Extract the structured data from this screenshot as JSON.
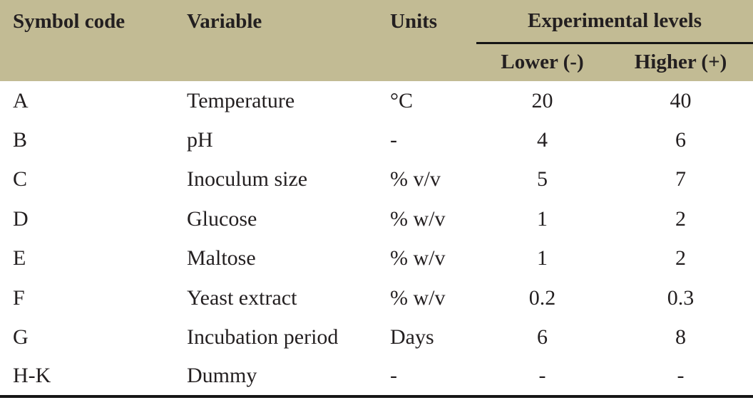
{
  "header": {
    "symbol_code": "Symbol code",
    "variable": "Variable",
    "units": "Units",
    "experimental_levels": "Experimental levels",
    "lower": "Lower (-)",
    "higher": "Higher (+)"
  },
  "rows": [
    {
      "symbol": "A",
      "variable": "Temperature",
      "units": "°C",
      "lower": "20",
      "higher": "40"
    },
    {
      "symbol": "B",
      "variable": "pH",
      "units": "-",
      "lower": "4",
      "higher": "6"
    },
    {
      "symbol": "C",
      "variable": "Inoculum size",
      "units": "% v/v",
      "lower": "5",
      "higher": "7"
    },
    {
      "symbol": "D",
      "variable": "Glucose",
      "units": "% w/v",
      "lower": "1",
      "higher": "2"
    },
    {
      "symbol": "E",
      "variable": "Maltose",
      "units": "% w/v",
      "lower": "1",
      "higher": "2"
    },
    {
      "symbol": "F",
      "variable": "Yeast extract",
      "units": "% w/v",
      "lower": "0.2",
      "higher": "0.3"
    },
    {
      "symbol": "G",
      "variable": "Incubation period",
      "units": "Days",
      "lower": "6",
      "higher": "8"
    },
    {
      "symbol": "H-K",
      "variable": "Dummy",
      "units": "-",
      "lower": "-",
      "higher": "-"
    }
  ],
  "colors": {
    "header_bg": "#c2bb94",
    "text": "#231f20",
    "rule": "#151515",
    "body_bg": "#ffffff"
  }
}
